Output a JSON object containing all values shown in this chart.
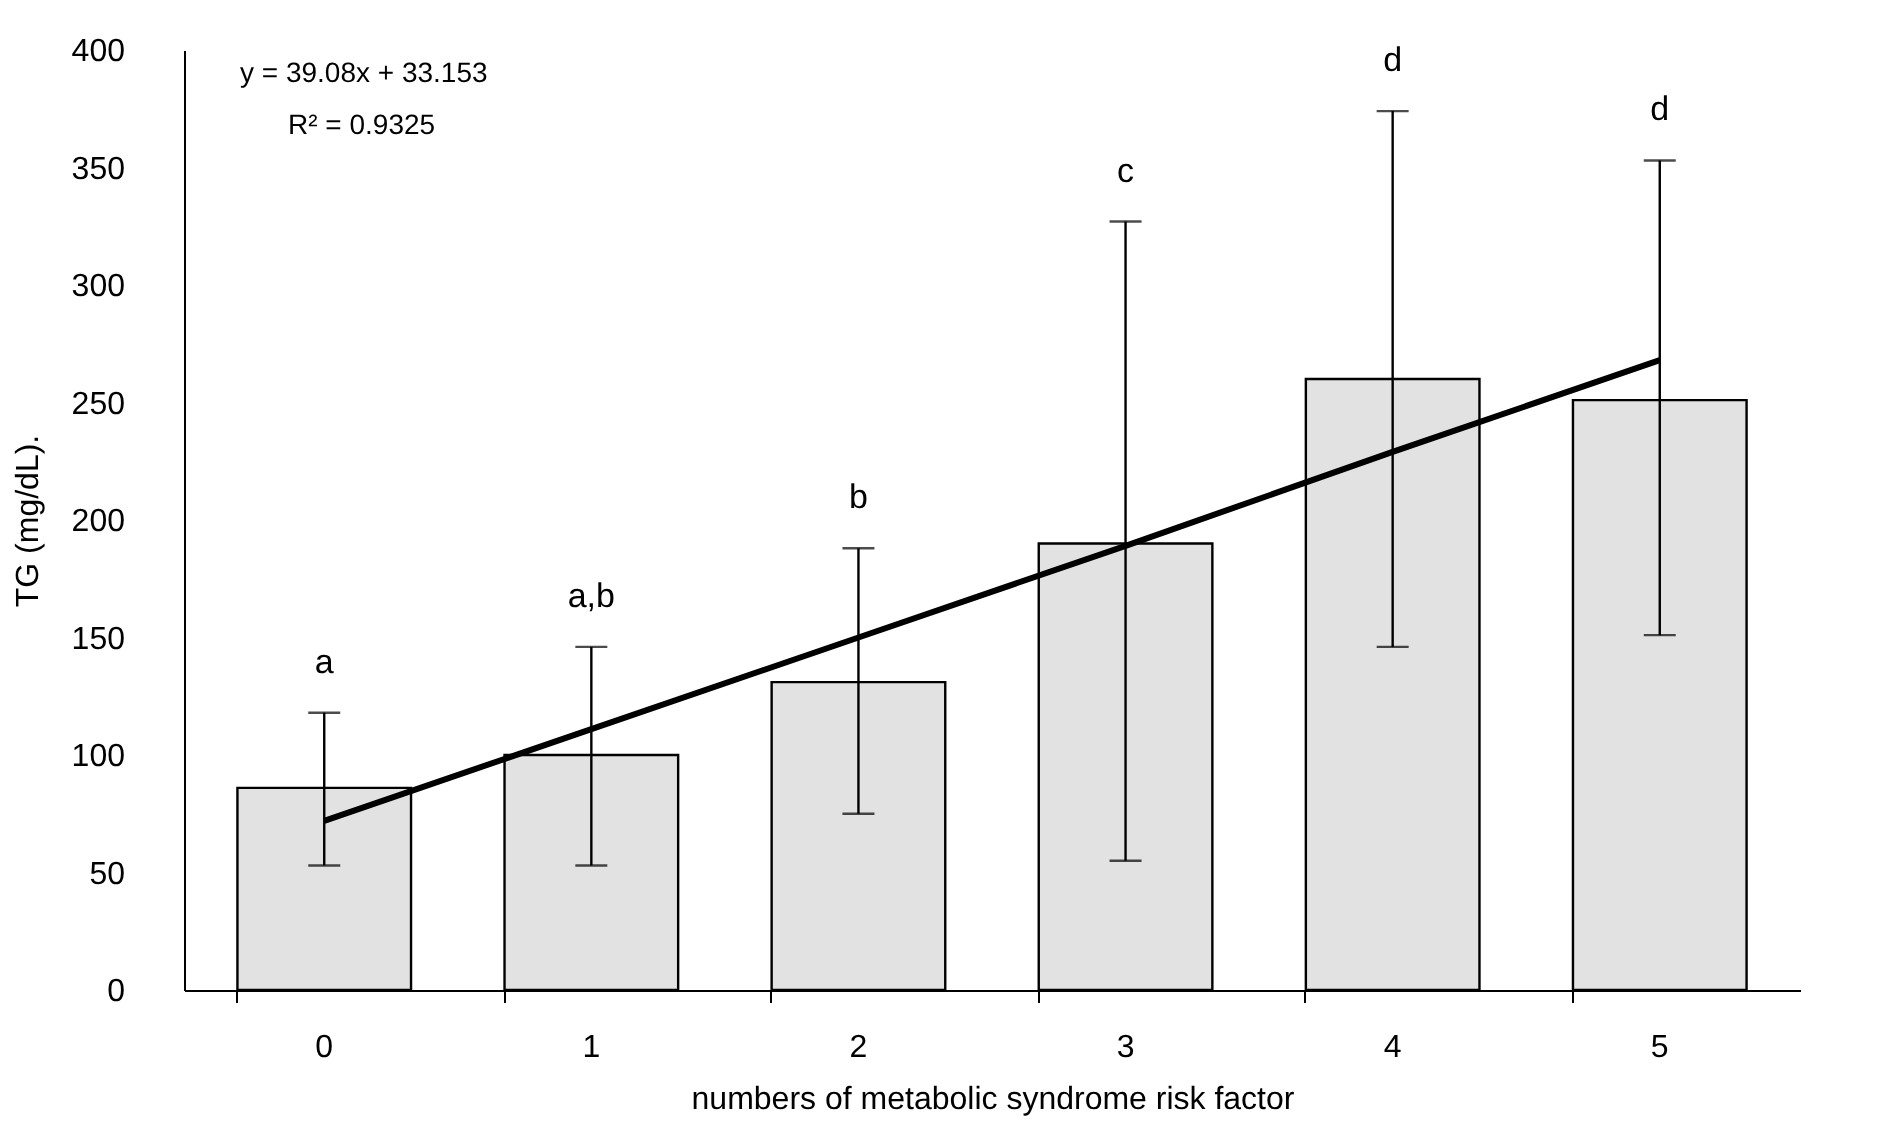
{
  "chart_data": {
    "type": "bar",
    "xlabel": "numbers of metabolic syndrome risk factor",
    "ylabel": "TG (mg/dL).",
    "categories": [
      "0",
      "1",
      "2",
      "3",
      "4",
      "5"
    ],
    "series": [
      {
        "color": "#e2e2e2",
        "values": [
          86,
          100,
          131,
          190,
          260,
          251
        ],
        "errors": [
          [
            53,
            118
          ],
          [
            53,
            146
          ],
          [
            75,
            188
          ],
          [
            55,
            327
          ],
          [
            146,
            374
          ],
          [
            151,
            353
          ]
        ]
      },
      {
        "type": "line",
        "color": "#000000",
        "x": [
          "0",
          "1",
          "2",
          "3",
          "4",
          "5"
        ],
        "values": [
          72,
          111,
          150,
          189,
          229,
          268
        ]
      }
    ],
    "ylim": [
      0,
      400
    ],
    "yticks": [
      0,
      50,
      100,
      150,
      200,
      250,
      300,
      350,
      400
    ],
    "grid": false,
    "marker": "none",
    "line_style": "solid",
    "annotations": [
      "y = 39.08x + 33.153",
      "R² = 0.9325",
      {
        "text": "a",
        "x": "0",
        "y": 118
      },
      {
        "text": "a,b",
        "x": "1",
        "y": 146
      },
      {
        "text": "b",
        "x": "2",
        "y": 188
      },
      {
        "text": "c",
        "x": "3",
        "y": 327
      },
      {
        "text": "d",
        "x": "4",
        "y": 374
      },
      {
        "text": "d",
        "x": "5",
        "y": 353
      }
    ]
  }
}
